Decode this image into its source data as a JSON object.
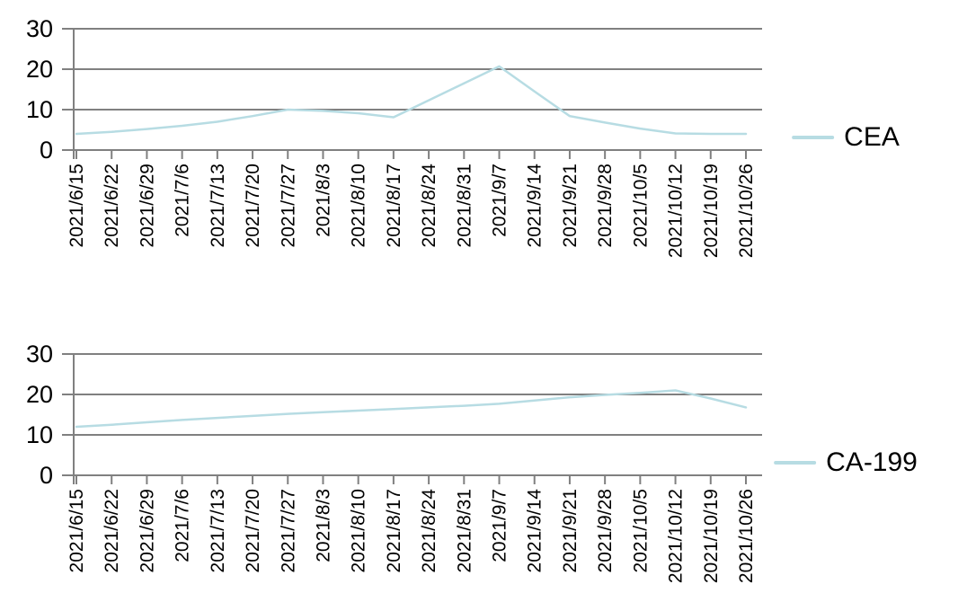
{
  "page": {
    "background": "#ffffff"
  },
  "theme": {
    "line_color": "#b7dce3",
    "grid_color": "#808080",
    "text_color": "#000000"
  },
  "chart_data": [
    {
      "type": "line",
      "title": "",
      "xlabel": "",
      "ylabel": "",
      "grid": true,
      "legend_position": "right",
      "ylim": [
        0,
        30
      ],
      "yticks": [
        0,
        10,
        20,
        30
      ],
      "categories": [
        "2021/6/15",
        "2021/6/22",
        "2021/6/29",
        "2021/7/6",
        "2021/7/13",
        "2021/7/20",
        "2021/7/27",
        "2021/8/3",
        "2021/8/10",
        "2021/8/17",
        "2021/8/24",
        "2021/8/31",
        "2021/9/7",
        "2021/9/14",
        "2021/9/21",
        "2021/9/28",
        "2021/10/5",
        "2021/10/12",
        "2021/10/19",
        "2021/10/26"
      ],
      "series": [
        {
          "name": "CEA",
          "values": [
            4,
            4.5,
            5.2,
            6,
            7,
            8.4,
            10,
            9.7,
            9.1,
            8.1,
            12.3,
            16.5,
            20.7,
            14.5,
            8.4,
            6.8,
            5.3,
            4.1,
            4,
            4
          ]
        }
      ]
    },
    {
      "type": "line",
      "title": "",
      "xlabel": "",
      "ylabel": "",
      "grid": true,
      "legend_position": "right",
      "ylim": [
        0,
        30
      ],
      "yticks": [
        0,
        10,
        20,
        30
      ],
      "categories": [
        "2021/6/15",
        "2021/6/22",
        "2021/6/29",
        "2021/7/6",
        "2021/7/13",
        "2021/7/20",
        "2021/7/27",
        "2021/8/3",
        "2021/8/10",
        "2021/8/17",
        "2021/8/24",
        "2021/8/31",
        "2021/9/7",
        "2021/9/14",
        "2021/9/21",
        "2021/9/28",
        "2021/10/5",
        "2021/10/12",
        "2021/10/19",
        "2021/10/26"
      ],
      "series": [
        {
          "name": "CA-199",
          "values": [
            12,
            12.5,
            13.1,
            13.7,
            14.2,
            14.7,
            15.2,
            15.6,
            16,
            16.4,
            16.8,
            17.2,
            17.7,
            18.5,
            19.3,
            19.9,
            20.4,
            21,
            19,
            16.8
          ]
        }
      ]
    }
  ]
}
